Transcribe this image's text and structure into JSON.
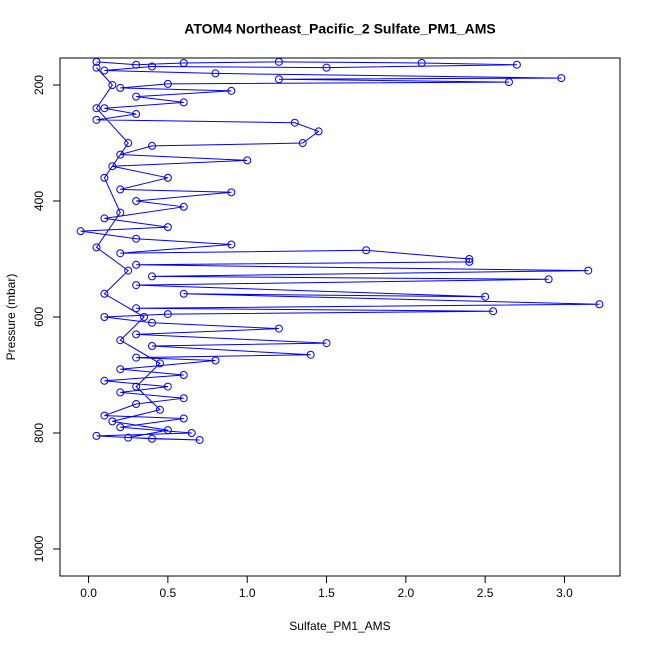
{
  "chart_data": {
    "type": "line",
    "title": "ATOM4 Northeast_Pacific_2 Sulfate_PM1_AMS",
    "x_label": "Sulfate_PM1_AMS",
    "y_label": "Pressure (mbar)",
    "color": "#0000ff",
    "markers": "open-circle",
    "grid": false,
    "xlim": [
      -0.18,
      3.35
    ],
    "ylim": [
      1046.6,
      153.4
    ],
    "xticks": [
      {
        "value": 0,
        "label": "0.0"
      },
      {
        "value": 0.5,
        "label": "0.5"
      },
      {
        "value": 1,
        "label": "1.0"
      },
      {
        "value": 1.5,
        "label": "1.5"
      },
      {
        "value": 2,
        "label": "2.0"
      },
      {
        "value": 2.5,
        "label": "2.5"
      },
      {
        "value": 3,
        "label": "3.0"
      }
    ],
    "yticks": [
      200,
      400,
      600,
      800,
      1000
    ],
    "x": [
      0.05,
      0.3,
      0.6,
      1.2,
      2.1,
      2.7,
      1.5,
      0.4,
      0.1,
      0.8,
      2.98,
      1.2,
      2.65,
      0.5,
      0.2,
      0.9,
      0.3,
      0.6,
      0.1,
      0.3,
      0.05,
      1.3,
      1.45,
      1.35,
      0.4,
      0.2,
      1.0,
      0.15,
      0.5,
      0.2,
      0.9,
      0.3,
      0.6,
      0.1,
      0.5,
      -0.05,
      0.3,
      0.9,
      0.2,
      1.75,
      2.4,
      2.4,
      0.3,
      3.15,
      0.4,
      2.9,
      0.3,
      2.5,
      0.6,
      3.22,
      0.3,
      2.55,
      0.5,
      0.1,
      0.4,
      1.2,
      0.3,
      1.5,
      0.4,
      1.4,
      0.3,
      0.8,
      0.2,
      0.6,
      0.1,
      0.5,
      0.2,
      0.6,
      0.3,
      0.1,
      0.6,
      0.2,
      0.65,
      0.05,
      0.4,
      0.7,
      0.25,
      0.5,
      0.15,
      0.45,
      0.3,
      0.45,
      0.2,
      0.35,
      0.1,
      0.25,
      0.05,
      0.2,
      0.1,
      0.25,
      0.05,
      0.15,
      0.05
    ],
    "values": [
      160,
      165,
      162,
      160,
      162,
      165,
      170,
      168,
      175,
      180,
      188,
      190,
      195,
      198,
      205,
      210,
      220,
      230,
      240,
      250,
      260,
      265,
      280,
      300,
      305,
      320,
      330,
      340,
      360,
      380,
      385,
      400,
      410,
      430,
      445,
      452,
      465,
      475,
      490,
      485,
      500,
      505,
      510,
      520,
      530,
      535,
      545,
      565,
      560,
      578,
      585,
      590,
      595,
      600,
      610,
      620,
      630,
      645,
      650,
      665,
      670,
      675,
      690,
      700,
      710,
      720,
      730,
      740,
      750,
      770,
      775,
      790,
      800,
      805,
      810,
      812,
      808,
      795,
      780,
      760,
      720,
      680,
      640,
      600,
      560,
      520,
      480,
      420,
      360,
      300,
      240,
      200,
      170
    ]
  }
}
